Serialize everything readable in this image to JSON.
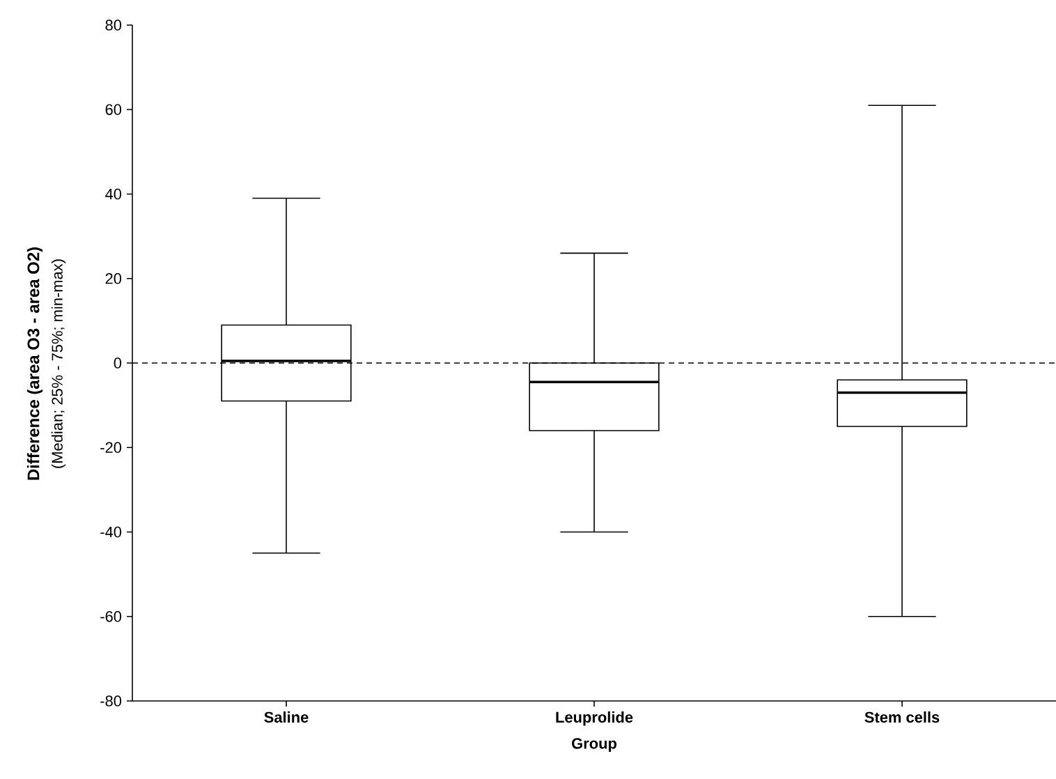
{
  "chart_data": {
    "type": "box",
    "xlabel": "Group",
    "ylabel": "Difference (area O3 - area O2)",
    "annotations": [
      "(Median; 25% - 75%; min-max)"
    ],
    "categories": [
      "Saline",
      "Leuprolide",
      "Stem cells"
    ],
    "boxes": [
      {
        "low": -45,
        "q1": -9,
        "median": 0.5,
        "q3": 9,
        "high": 39
      },
      {
        "low": -40,
        "q1": -16,
        "median": -4.5,
        "q3": 0,
        "high": 26
      },
      {
        "low": -60,
        "q1": -15,
        "median": -7,
        "q3": -4,
        "high": 61
      }
    ],
    "ylim": [
      -80,
      80
    ],
    "yticks": [
      -80,
      -60,
      -40,
      -20,
      0,
      20,
      40,
      60,
      80
    ],
    "ref_lines": [
      {
        "axis": "y",
        "value": 0,
        "line_style": "dashed"
      }
    ],
    "grid": false
  }
}
